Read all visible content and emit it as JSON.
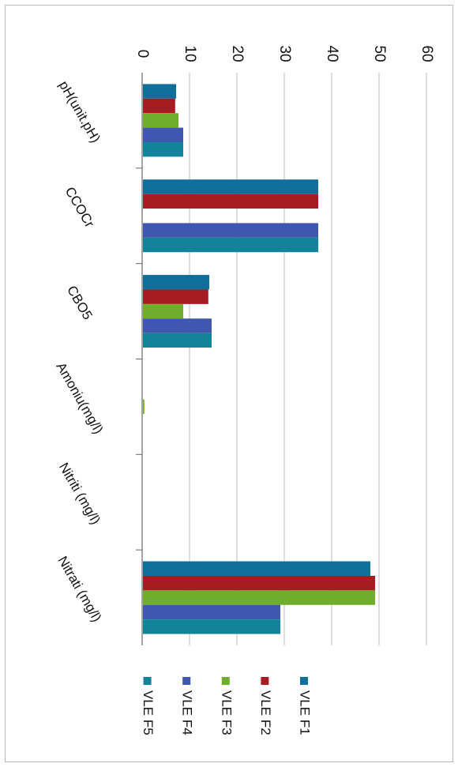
{
  "chart_data": {
    "type": "bar",
    "orientation": "horizontal",
    "categories": [
      "pH(unit.pH)",
      "CCOCr",
      "CBO5",
      "Amoniu(mg/l)",
      "Nitriti (mg/l)",
      "Nitrati  (mg/l)"
    ],
    "series": [
      {
        "name": "VLE F1",
        "color": "#0f6f9a",
        "values": [
          7,
          37,
          14,
          0,
          0,
          48
        ]
      },
      {
        "name": "VLE F2",
        "color": "#a61c22",
        "values": [
          6.8,
          37,
          13.8,
          0,
          0,
          49
        ]
      },
      {
        "name": "VLE F3",
        "color": "#6fae2c",
        "values": [
          7.5,
          0,
          8.5,
          0.3,
          0,
          49
        ]
      },
      {
        "name": "VLE F4",
        "color": "#4057b0",
        "values": [
          8.5,
          37,
          14.5,
          0,
          0,
          29
        ]
      },
      {
        "name": "VLE F5",
        "color": "#12849a",
        "values": [
          8.5,
          37,
          14.5,
          0,
          0,
          29
        ]
      }
    ],
    "ticks": [
      0,
      10,
      20,
      30,
      40,
      50,
      60
    ],
    "xlim": [
      0,
      60
    ],
    "grid": true,
    "legend_position": "bottom",
    "title": "",
    "xlabel": "",
    "ylabel": ""
  }
}
